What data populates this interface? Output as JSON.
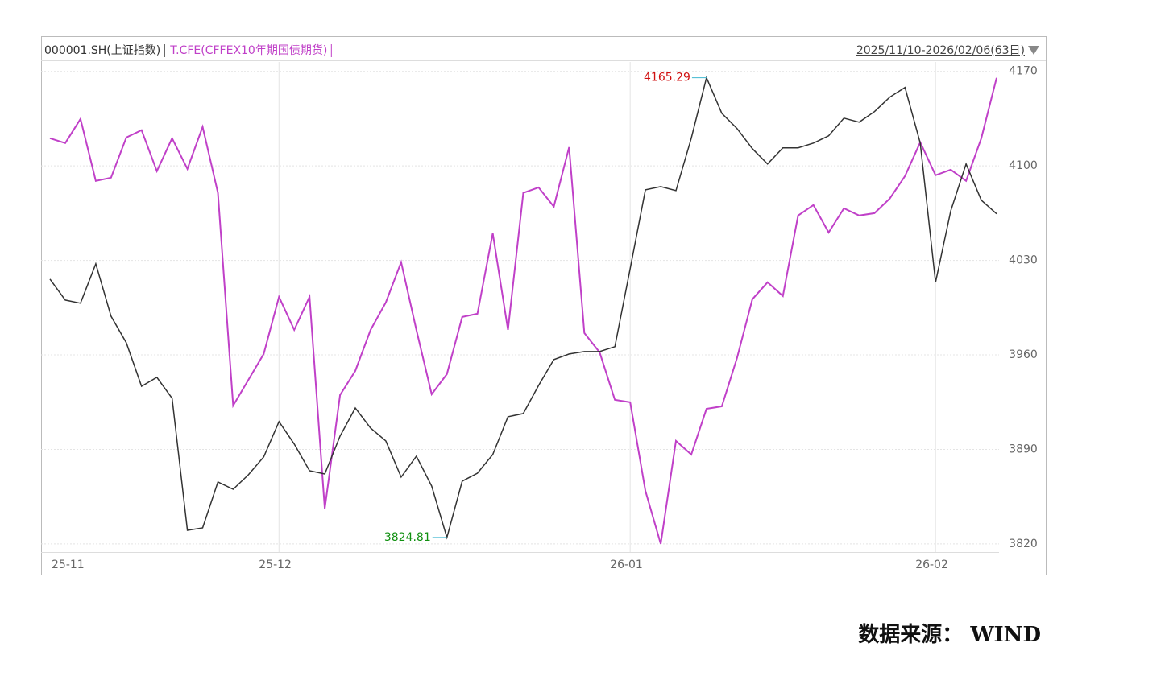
{
  "chart_data": {
    "type": "line",
    "header_range": "2025/11/10-2026/02/06(63日)",
    "source": "数据来源： WIND",
    "categories": [
      "25-11",
      null,
      null,
      null,
      null,
      null,
      null,
      null,
      null,
      null,
      null,
      null,
      null,
      null,
      null,
      "25-12",
      null,
      null,
      null,
      null,
      null,
      null,
      null,
      null,
      null,
      null,
      null,
      null,
      null,
      null,
      null,
      null,
      null,
      null,
      null,
      null,
      null,
      null,
      "26-01",
      null,
      null,
      null,
      null,
      null,
      null,
      null,
      null,
      null,
      null,
      null,
      null,
      null,
      null,
      null,
      null,
      null,
      null,
      null,
      "26-02",
      null,
      null,
      null,
      null
    ],
    "series": [
      {
        "name": "000001.SH(上证指数)",
        "color": "#333333",
        "values": [
          4016.2,
          4000.6,
          3998.3,
          4027.5,
          3988.7,
          3969.0,
          3936.8,
          3943.4,
          3927.9,
          3830.1,
          3831.9,
          3865.9,
          3860.5,
          3871.3,
          3884.4,
          3910.6,
          3894.0,
          3874.2,
          3871.8,
          3899.9,
          3920.7,
          3905.8,
          3896.3,
          3869.5,
          3885.0,
          3862.9,
          3824.81,
          3866.5,
          3872.4,
          3886.2,
          3914.2,
          3916.6,
          3937.4,
          3956.5,
          3960.7,
          3962.5,
          3962.5,
          3966.1,
          4024.0,
          4082.3,
          4084.7,
          4081.7,
          4120.5,
          4165.29,
          4139.0,
          4127.7,
          4112.8,
          4101.4,
          4113.4,
          4113.4,
          4116.9,
          4122.3,
          4135.4,
          4132.4,
          4140.2,
          4150.9,
          4158.1,
          4116.9,
          4013.8,
          4066.8,
          4101.4,
          4074.6,
          4064.5
        ]
      },
      {
        "name": "T.CFE(CFFEX10年期国债期货)",
        "color": "#c040c8",
        "values": [
          4120.5,
          4116.9,
          4134.8,
          4088.9,
          4091.3,
          4121.1,
          4126.5,
          4096.1,
          4120.5,
          4097.8,
          4128.9,
          4080.0,
          3922.5,
          3941.6,
          3960.7,
          4003.0,
          3978.6,
          4003.0,
          3846.2,
          3930.3,
          3948.2,
          3978.6,
          3998.9,
          4028.7,
          3978.6,
          3930.9,
          3945.8,
          3988.1,
          3990.5,
          4050.1,
          3978.6,
          4080.0,
          4084.1,
          4069.8,
          4113.9,
          3976.2,
          3961.9,
          3926.7,
          3924.9,
          3859.3,
          3820.0,
          3896.3,
          3886.2,
          3920.1,
          3921.9,
          3957.7,
          4001.2,
          4013.8,
          4003.6,
          4063.3,
          4071.0,
          4050.7,
          4068.6,
          4063.3,
          4065.0,
          4075.8,
          4092.5,
          4117.5,
          4093.1,
          4097.2,
          4088.9,
          4120.5,
          4165.2
        ]
      }
    ],
    "ylim": [
      3814,
      4177
    ],
    "yticks": [
      3820,
      3890,
      3960,
      4030,
      4100,
      4170
    ],
    "grid": true,
    "max_label_color": "#d01010",
    "min_label_color": "#109010",
    "marker_color": "#40b8d0"
  }
}
